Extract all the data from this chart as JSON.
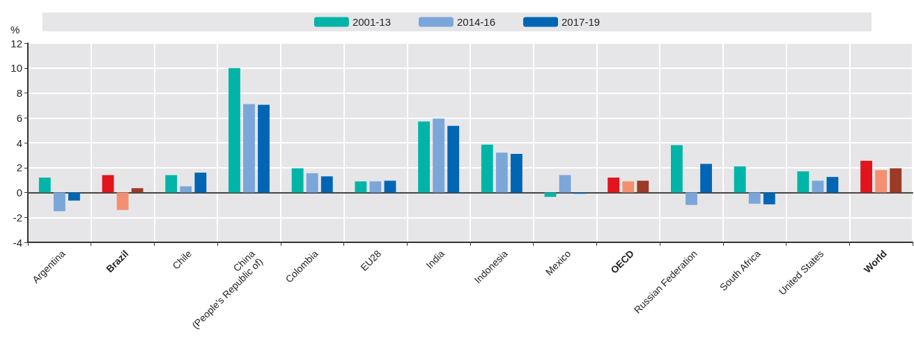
{
  "chart_data": {
    "type": "bar",
    "ylabel": "%",
    "categories": [
      "Argentina",
      "Brazil",
      "Chile",
      "China\n(People's Republic of)",
      "Colombia",
      "EU28",
      "India",
      "Indonesia",
      "Mexico",
      "OECD",
      "Russian Federation",
      "South Africa",
      "United States",
      "World"
    ],
    "series": [
      {
        "name": "2001-13",
        "color": "#00b5a7",
        "colors": [
          "#00b5a7",
          "#e2141c",
          "#00b5a7",
          "#00b5a7",
          "#00b5a7",
          "#00b5a7",
          "#00b5a7",
          "#00b5a7",
          "#00b5a7",
          "#e2141c",
          "#00b5a7",
          "#00b5a7",
          "#00b5a7",
          "#e2141c"
        ],
        "values": [
          1.2,
          1.4,
          1.4,
          10.0,
          1.95,
          0.9,
          5.7,
          3.85,
          -0.35,
          1.2,
          3.8,
          2.1,
          1.7,
          2.55
        ]
      },
      {
        "name": "2014-16",
        "color": "#7ba6d9",
        "colors": [
          "#7ba6d9",
          "#f4906f",
          "#7ba6d9",
          "#7ba6d9",
          "#7ba6d9",
          "#7ba6d9",
          "#7ba6d9",
          "#7ba6d9",
          "#7ba6d9",
          "#f4906f",
          "#7ba6d9",
          "#7ba6d9",
          "#7ba6d9",
          "#f4906f"
        ],
        "values": [
          -1.5,
          -1.4,
          0.5,
          7.1,
          1.55,
          0.9,
          5.95,
          3.2,
          1.4,
          0.9,
          -1.0,
          -0.9,
          0.95,
          1.8
        ]
      },
      {
        "name": "2017-19",
        "color": "#0066b3",
        "colors": [
          "#0066b3",
          "#9b3a26",
          "#0066b3",
          "#0066b3",
          "#0066b3",
          "#0066b3",
          "#0066b3",
          "#0066b3",
          "#0066b3",
          "#9b3a26",
          "#0066b3",
          "#0066b3",
          "#0066b3",
          "#9b3a26"
        ],
        "values": [
          -0.65,
          0.35,
          1.6,
          7.05,
          1.3,
          0.95,
          5.35,
          3.1,
          -0.1,
          0.95,
          2.3,
          -0.95,
          1.25,
          1.95
        ]
      }
    ],
    "ylim": [
      -4,
      12
    ],
    "yticks": [
      -4,
      -2,
      0,
      2,
      4,
      6,
      8,
      10,
      12
    ],
    "grid": true,
    "legend": "top"
  }
}
